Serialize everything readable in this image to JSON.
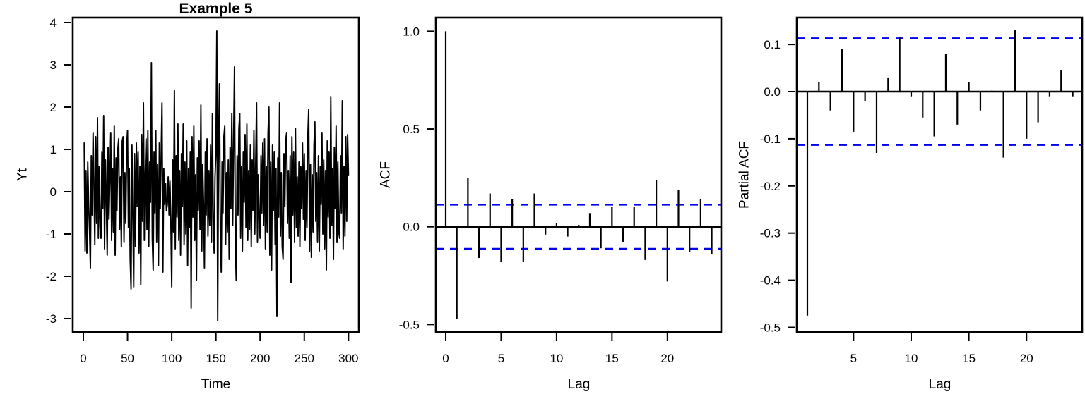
{
  "figure": {
    "background": "#ffffff",
    "line_color": "#000000",
    "conf_band_color": "#0000ee"
  },
  "chart_data": [
    {
      "id": "timeseries",
      "type": "line",
      "title": "Example 5",
      "xlabel": "Time",
      "ylabel": "Yt",
      "xlim": [
        0,
        300
      ],
      "ylim": [
        -3.3,
        4.1
      ],
      "grid": "off",
      "xticks": [
        "0",
        "50",
        "100",
        "150",
        "200",
        "250",
        "300"
      ],
      "yticks": [
        "4",
        "3",
        "2",
        "1",
        "0",
        "-1",
        "-2",
        "-3"
      ],
      "x_start": 1,
      "values": [
        1.15,
        -1.4,
        0.5,
        -1.45,
        0.7,
        -0.3,
        -0.9,
        -1.8,
        0.85,
        -0.55,
        1.4,
        0.2,
        -1.25,
        1.3,
        -0.75,
        1.75,
        -1.1,
        0.6,
        -0.85,
        -1.1,
        0.95,
        -0.4,
        1.8,
        -1.35,
        0.75,
        -0.2,
        -1.5,
        1.05,
        -0.65,
        0.3,
        1.4,
        -1.15,
        0.55,
        -0.95,
        1.55,
        -1.5,
        0.8,
        -0.45,
        1.0,
        1.25,
        -0.9,
        0.35,
        -1.3,
        1.2,
        1.3,
        -1.2,
        0.45,
        -0.75,
        1.05,
        1.45,
        -0.85,
        0.55,
        -1.6,
        -2.3,
        1.1,
        -0.5,
        -2.25,
        0.9,
        -1.3,
        1.15,
        -0.35,
        0.95,
        -1.45,
        0.6,
        -2.2,
        1.35,
        -0.7,
        2.1,
        -1.15,
        0.4,
        1.25,
        -0.9,
        1.45,
        -1.3,
        0.7,
        -0.25,
        3.05,
        -1.1,
        -1.85,
        0.95,
        -0.5,
        1.45,
        -1.2,
        0.65,
        -1.75,
        1.15,
        -0.4,
        0.85,
        2.1,
        -1.9,
        0.55,
        -0.3,
        0.2,
        -0.45,
        -0.3,
        0.35,
        -0.55,
        0.25,
        -0.7,
        -2.25,
        0.75,
        -0.95,
        2.4,
        -1.35,
        0.85,
        -0.6,
        1.6,
        -1.15,
        0.5,
        -1.5,
        0.9,
        -0.35,
        1.6,
        -1.25,
        0.7,
        -1.0,
        1.2,
        -1.75,
        0.55,
        -0.85,
        0.95,
        -2.75,
        1.3,
        -0.6,
        1.55,
        -1.15,
        0.4,
        -2.1,
        0.8,
        -0.45,
        1.2,
        -0.9,
        2.05,
        -1.4,
        0.65,
        -0.3,
        -1.8,
        0.95,
        -0.55,
        1.25,
        -1.05,
        0.5,
        -0.8,
        1.1,
        -1.2,
        1.85,
        -0.7,
        -1.45,
        0.35,
        0.9,
        3.8,
        -3.05,
        1.15,
        2.55,
        -0.95,
        -1.9,
        0.7,
        -0.5,
        1.3,
        1.55,
        -1.25,
        0.45,
        -0.95,
        0.75,
        -1.6,
        1.05,
        -0.4,
        1.85,
        -0.8,
        1.2,
        2.95,
        -1.3,
        -2.1,
        0.85,
        -0.55,
        1.5,
        1.85,
        -1.1,
        0.6,
        -1.4,
        0.95,
        -0.25,
        1.35,
        -0.85,
        1.6,
        -1.15,
        0.5,
        -0.9,
        1.1,
        -1.3,
        0.75,
        -0.45,
        1.45,
        -1.0,
        0.65,
        2.1,
        -1.2,
        0.4,
        -0.7,
        -1.1,
        0.85,
        -0.5,
        1.15,
        -0.8,
        1.25,
        -1.35,
        0.6,
        -0.95,
        1.4,
        2.0,
        -1.5,
        0.7,
        -1.85,
        1.1,
        -0.45,
        0.95,
        -1.25,
        0.55,
        -2.95,
        0.8,
        -0.6,
        2.1,
        -1.05,
        0.45,
        -1.3,
        -1.6,
        0.9,
        -0.35,
        1.2,
        1.4,
        -0.75,
        0.5,
        -1.1,
        0.85,
        -2.15,
        1.3,
        -0.55,
        0.95,
        -1.2,
        1.5,
        -0.85,
        0.35,
        -1.05,
        0.7,
        -1.3,
        0.6,
        -0.4,
        1.15,
        -0.65,
        0.9,
        -1.15,
        0.5,
        -0.85,
        1.3,
        1.95,
        -1.4,
        0.65,
        -1.55,
        0.4,
        -0.95,
        1.1,
        1.65,
        -0.7,
        0.45,
        -1.2,
        0.85,
        -1.4,
        0.6,
        -0.3,
        1.4,
        -1.0,
        0.75,
        -1.35,
        0.5,
        -1.85,
        1.2,
        -0.6,
        0.95,
        -1.1,
        2.25,
        -0.8,
        0.55,
        -1.6,
        1.05,
        -0.4,
        1.55,
        -1.2,
        0.7,
        -0.95,
        -1.1,
        0.85,
        -0.5,
        2.15,
        -1.35,
        0.6,
        -1.05,
        1.3,
        -0.7,
        1.35,
        0.4
      ]
    },
    {
      "id": "acf",
      "type": "bar",
      "title": "",
      "xlabel": "Lag",
      "ylabel": "ACF",
      "xlim": [
        0,
        24
      ],
      "ylim": [
        -0.5,
        1.0
      ],
      "grid": "off",
      "xticks": [
        "0",
        "5",
        "10",
        "15",
        "20"
      ],
      "yticks": [
        "1.0",
        "0.5",
        "0.0",
        "-0.5"
      ],
      "conf_band": 0.113,
      "lags": [
        0,
        1,
        2,
        3,
        4,
        5,
        6,
        7,
        8,
        9,
        10,
        11,
        12,
        13,
        14,
        15,
        16,
        17,
        18,
        19,
        20,
        21,
        22,
        23,
        24
      ],
      "values": [
        1.0,
        -0.47,
        0.25,
        -0.16,
        0.17,
        -0.18,
        0.14,
        -0.18,
        0.17,
        -0.04,
        0.02,
        -0.05,
        0.01,
        0.07,
        -0.11,
        0.1,
        -0.08,
        0.1,
        -0.17,
        0.24,
        -0.28,
        0.19,
        -0.13,
        0.14,
        -0.14
      ]
    },
    {
      "id": "pacf",
      "type": "bar",
      "title": "",
      "xlabel": "Lag",
      "ylabel": "Partial ACF",
      "xlim": [
        1,
        24
      ],
      "ylim": [
        -0.5,
        0.13
      ],
      "grid": "off",
      "xticks": [
        "5",
        "10",
        "15",
        "20"
      ],
      "yticks": [
        "0.1",
        "0.0",
        "-0.1",
        "-0.2",
        "-0.3",
        "-0.4",
        "-0.5"
      ],
      "conf_band": 0.113,
      "lags": [
        1,
        2,
        3,
        4,
        5,
        6,
        7,
        8,
        9,
        10,
        11,
        12,
        13,
        14,
        15,
        16,
        17,
        18,
        19,
        20,
        21,
        22,
        23,
        24
      ],
      "values": [
        -0.475,
        0.02,
        -0.04,
        0.09,
        -0.085,
        -0.02,
        -0.13,
        0.03,
        0.115,
        -0.01,
        -0.055,
        -0.095,
        0.08,
        -0.07,
        0.02,
        -0.04,
        0.002,
        -0.14,
        0.13,
        -0.1,
        -0.065,
        -0.01,
        0.045,
        -0.01
      ]
    }
  ]
}
